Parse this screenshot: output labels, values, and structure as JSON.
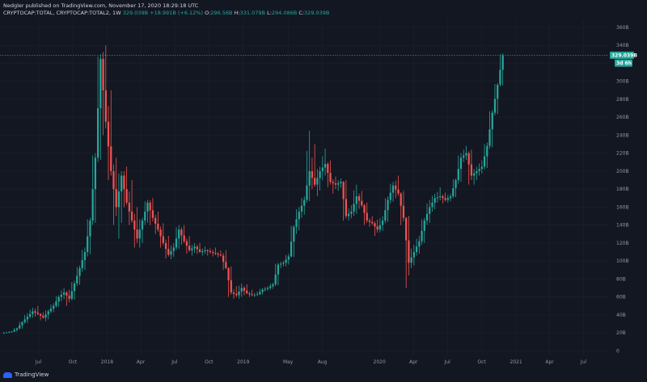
{
  "header": {
    "published": "Nedgler published on TradingView.com, November 17, 2020 18:29:18 UTC",
    "symbol": "CRYPTOCAP:TOTAL, CRYPTOCAP:TOTAL2, 1W",
    "last": "329.039B",
    "change": "+18.991B (+6.12%)",
    "o_label": "O:",
    "o_value": "296.56B",
    "h_label": "H:",
    "h_value": "331.079B",
    "l_label": "L:",
    "l_value": "294.086B",
    "c_label": "C:",
    "c_value": "329.039B"
  },
  "footer": {
    "brand": "TradingView"
  },
  "colors": {
    "background": "#131722",
    "up": "#26a69a",
    "down": "#ef5350",
    "grid": "#1e222d",
    "axis_text": "#9598a1"
  },
  "chart_data": {
    "type": "candlestick",
    "price_unit": "B",
    "y_axis_labels": [
      "0",
      "20B",
      "40B",
      "60B",
      "80B",
      "100B",
      "120B",
      "140B",
      "160B",
      "180B",
      "200B",
      "220B",
      "240B",
      "260B",
      "280B",
      "300B",
      "320B",
      "340B",
      "360B"
    ],
    "y_axis_values": [
      0,
      20,
      40,
      60,
      80,
      100,
      120,
      140,
      160,
      180,
      200,
      220,
      240,
      260,
      280,
      300,
      320,
      340,
      360
    ],
    "ylim": [
      -5,
      368
    ],
    "x_axis_labels": [
      "Jul",
      "Oct",
      "2018",
      "Apr",
      "Jul",
      "Oct",
      "2019",
      "May",
      "Aug",
      "2020",
      "Apr",
      "Jul",
      "Oct",
      "2021",
      "Apr",
      "Jul"
    ],
    "x_axis_dates": [
      "2017-07-01",
      "2017-10-01",
      "2018-01-01",
      "2018-04-01",
      "2018-07-01",
      "2018-10-01",
      "2019-01-01",
      "2019-05-01",
      "2019-08-01",
      "2020-01-01",
      "2020-04-01",
      "2020-07-01",
      "2020-10-01",
      "2021-01-01",
      "2021-04-01",
      "2021-07-01"
    ],
    "xlim": [
      "2017-03-20",
      "2021-09-05"
    ],
    "price_tags": [
      {
        "label": "329.039B",
        "value": 329.04
      },
      {
        "label": "3d 6h",
        "value": 320.2
      }
    ],
    "grid": true,
    "candles": [
      {
        "date": "2017-03-27",
        "o": 20,
        "h": 21,
        "l": 19,
        "c": 20.5
      },
      {
        "date": "2017-04-10",
        "o": 20.5,
        "h": 22,
        "l": 20,
        "c": 21.5
      },
      {
        "date": "2017-04-24",
        "o": 21.5,
        "h": 26,
        "l": 21,
        "c": 25
      },
      {
        "date": "2017-05-08",
        "o": 25,
        "h": 33,
        "l": 24,
        "c": 32
      },
      {
        "date": "2017-05-22",
        "o": 32,
        "h": 42,
        "l": 30,
        "c": 38
      },
      {
        "date": "2017-06-05",
        "o": 38,
        "h": 48,
        "l": 36,
        "c": 44
      },
      {
        "date": "2017-06-19",
        "o": 44,
        "h": 50,
        "l": 38,
        "c": 41
      },
      {
        "date": "2017-07-03",
        "o": 41,
        "h": 43,
        "l": 34,
        "c": 37
      },
      {
        "date": "2017-07-17",
        "o": 37,
        "h": 46,
        "l": 33,
        "c": 44
      },
      {
        "date": "2017-07-31",
        "o": 44,
        "h": 53,
        "l": 42,
        "c": 50
      },
      {
        "date": "2017-08-14",
        "o": 50,
        "h": 62,
        "l": 48,
        "c": 60
      },
      {
        "date": "2017-08-28",
        "o": 60,
        "h": 70,
        "l": 55,
        "c": 65
      },
      {
        "date": "2017-09-11",
        "o": 65,
        "h": 68,
        "l": 50,
        "c": 58
      },
      {
        "date": "2017-09-25",
        "o": 58,
        "h": 78,
        "l": 56,
        "c": 75
      },
      {
        "date": "2017-10-09",
        "o": 75,
        "h": 95,
        "l": 72,
        "c": 92
      },
      {
        "date": "2017-10-23",
        "o": 92,
        "h": 115,
        "l": 88,
        "c": 110
      },
      {
        "date": "2017-11-06",
        "o": 110,
        "h": 148,
        "l": 105,
        "c": 145
      },
      {
        "date": "2017-11-20",
        "o": 145,
        "h": 220,
        "l": 140,
        "c": 215
      },
      {
        "date": "2017-12-04",
        "o": 215,
        "h": 330,
        "l": 210,
        "c": 325
      },
      {
        "date": "2017-12-18",
        "o": 325,
        "h": 340,
        "l": 240,
        "c": 255
      },
      {
        "date": "2018-01-01",
        "o": 255,
        "h": 290,
        "l": 190,
        "c": 200
      },
      {
        "date": "2018-01-15",
        "o": 200,
        "h": 215,
        "l": 140,
        "c": 160
      },
      {
        "date": "2018-01-29",
        "o": 160,
        "h": 200,
        "l": 125,
        "c": 195
      },
      {
        "date": "2018-02-12",
        "o": 195,
        "h": 205,
        "l": 160,
        "c": 165
      },
      {
        "date": "2018-02-26",
        "o": 165,
        "h": 190,
        "l": 140,
        "c": 145
      },
      {
        "date": "2018-03-12",
        "o": 145,
        "h": 160,
        "l": 115,
        "c": 125
      },
      {
        "date": "2018-03-26",
        "o": 125,
        "h": 148,
        "l": 115,
        "c": 145
      },
      {
        "date": "2018-04-09",
        "o": 145,
        "h": 168,
        "l": 140,
        "c": 165
      },
      {
        "date": "2018-04-23",
        "o": 165,
        "h": 170,
        "l": 140,
        "c": 148
      },
      {
        "date": "2018-05-07",
        "o": 148,
        "h": 155,
        "l": 130,
        "c": 135
      },
      {
        "date": "2018-05-21",
        "o": 135,
        "h": 142,
        "l": 115,
        "c": 120
      },
      {
        "date": "2018-06-04",
        "o": 120,
        "h": 128,
        "l": 103,
        "c": 107
      },
      {
        "date": "2018-06-18",
        "o": 107,
        "h": 120,
        "l": 102,
        "c": 115
      },
      {
        "date": "2018-07-02",
        "o": 115,
        "h": 140,
        "l": 112,
        "c": 135
      },
      {
        "date": "2018-07-16",
        "o": 135,
        "h": 140,
        "l": 118,
        "c": 122
      },
      {
        "date": "2018-07-30",
        "o": 122,
        "h": 128,
        "l": 108,
        "c": 112
      },
      {
        "date": "2018-08-13",
        "o": 112,
        "h": 120,
        "l": 106,
        "c": 116
      },
      {
        "date": "2018-08-27",
        "o": 116,
        "h": 120,
        "l": 108,
        "c": 110
      },
      {
        "date": "2018-09-10",
        "o": 110,
        "h": 116,
        "l": 106,
        "c": 112
      },
      {
        "date": "2018-09-24",
        "o": 112,
        "h": 114,
        "l": 106,
        "c": 110
      },
      {
        "date": "2018-10-08",
        "o": 110,
        "h": 115,
        "l": 105,
        "c": 108
      },
      {
        "date": "2018-10-22",
        "o": 108,
        "h": 112,
        "l": 104,
        "c": 106
      },
      {
        "date": "2018-11-05",
        "o": 106,
        "h": 112,
        "l": 90,
        "c": 92
      },
      {
        "date": "2018-11-19",
        "o": 92,
        "h": 94,
        "l": 60,
        "c": 65
      },
      {
        "date": "2018-12-03",
        "o": 65,
        "h": 72,
        "l": 58,
        "c": 62
      },
      {
        "date": "2018-12-17",
        "o": 62,
        "h": 75,
        "l": 58,
        "c": 70
      },
      {
        "date": "2018-12-31",
        "o": 70,
        "h": 74,
        "l": 62,
        "c": 64
      },
      {
        "date": "2019-01-14",
        "o": 64,
        "h": 68,
        "l": 60,
        "c": 62
      },
      {
        "date": "2019-01-28",
        "o": 62,
        "h": 66,
        "l": 60,
        "c": 63
      },
      {
        "date": "2019-02-11",
        "o": 63,
        "h": 70,
        "l": 62,
        "c": 68
      },
      {
        "date": "2019-02-25",
        "o": 68,
        "h": 72,
        "l": 66,
        "c": 70
      },
      {
        "date": "2019-03-11",
        "o": 70,
        "h": 76,
        "l": 68,
        "c": 74
      },
      {
        "date": "2019-03-25",
        "o": 74,
        "h": 98,
        "l": 72,
        "c": 96
      },
      {
        "date": "2019-04-08",
        "o": 96,
        "h": 100,
        "l": 92,
        "c": 98
      },
      {
        "date": "2019-04-22",
        "o": 98,
        "h": 108,
        "l": 94,
        "c": 105
      },
      {
        "date": "2019-05-06",
        "o": 105,
        "h": 140,
        "l": 104,
        "c": 138
      },
      {
        "date": "2019-05-20",
        "o": 138,
        "h": 160,
        "l": 130,
        "c": 155
      },
      {
        "date": "2019-06-03",
        "o": 155,
        "h": 172,
        "l": 148,
        "c": 168
      },
      {
        "date": "2019-06-17",
        "o": 168,
        "h": 245,
        "l": 165,
        "c": 200
      },
      {
        "date": "2019-07-01",
        "o": 200,
        "h": 230,
        "l": 180,
        "c": 185
      },
      {
        "date": "2019-07-15",
        "o": 185,
        "h": 205,
        "l": 172,
        "c": 200
      },
      {
        "date": "2019-07-29",
        "o": 200,
        "h": 225,
        "l": 190,
        "c": 208
      },
      {
        "date": "2019-08-12",
        "o": 208,
        "h": 212,
        "l": 182,
        "c": 188
      },
      {
        "date": "2019-08-26",
        "o": 188,
        "h": 194,
        "l": 175,
        "c": 185
      },
      {
        "date": "2019-09-09",
        "o": 185,
        "h": 192,
        "l": 178,
        "c": 188
      },
      {
        "date": "2019-09-23",
        "o": 188,
        "h": 190,
        "l": 145,
        "c": 150
      },
      {
        "date": "2019-10-07",
        "o": 150,
        "h": 162,
        "l": 145,
        "c": 155
      },
      {
        "date": "2019-10-21",
        "o": 155,
        "h": 185,
        "l": 150,
        "c": 172
      },
      {
        "date": "2019-11-04",
        "o": 172,
        "h": 178,
        "l": 158,
        "c": 162
      },
      {
        "date": "2019-11-18",
        "o": 162,
        "h": 165,
        "l": 140,
        "c": 145
      },
      {
        "date": "2019-12-02",
        "o": 145,
        "h": 150,
        "l": 138,
        "c": 142
      },
      {
        "date": "2019-12-16",
        "o": 142,
        "h": 146,
        "l": 128,
        "c": 135
      },
      {
        "date": "2019-12-30",
        "o": 135,
        "h": 150,
        "l": 132,
        "c": 145
      },
      {
        "date": "2020-01-13",
        "o": 145,
        "h": 172,
        "l": 142,
        "c": 168
      },
      {
        "date": "2020-01-27",
        "o": 168,
        "h": 188,
        "l": 164,
        "c": 184
      },
      {
        "date": "2020-02-10",
        "o": 184,
        "h": 195,
        "l": 170,
        "c": 175
      },
      {
        "date": "2020-02-24",
        "o": 175,
        "h": 178,
        "l": 140,
        "c": 148
      },
      {
        "date": "2020-03-09",
        "o": 148,
        "h": 150,
        "l": 70,
        "c": 98
      },
      {
        "date": "2020-03-23",
        "o": 98,
        "h": 118,
        "l": 92,
        "c": 110
      },
      {
        "date": "2020-04-06",
        "o": 110,
        "h": 128,
        "l": 106,
        "c": 122
      },
      {
        "date": "2020-04-20",
        "o": 122,
        "h": 148,
        "l": 118,
        "c": 145
      },
      {
        "date": "2020-05-04",
        "o": 145,
        "h": 168,
        "l": 140,
        "c": 160
      },
      {
        "date": "2020-05-18",
        "o": 160,
        "h": 175,
        "l": 155,
        "c": 170
      },
      {
        "date": "2020-06-01",
        "o": 170,
        "h": 182,
        "l": 165,
        "c": 172
      },
      {
        "date": "2020-06-15",
        "o": 172,
        "h": 176,
        "l": 164,
        "c": 168
      },
      {
        "date": "2020-06-29",
        "o": 168,
        "h": 175,
        "l": 165,
        "c": 172
      },
      {
        "date": "2020-07-13",
        "o": 172,
        "h": 192,
        "l": 170,
        "c": 190
      },
      {
        "date": "2020-07-27",
        "o": 190,
        "h": 220,
        "l": 186,
        "c": 215
      },
      {
        "date": "2020-08-10",
        "o": 215,
        "h": 228,
        "l": 210,
        "c": 220
      },
      {
        "date": "2020-08-24",
        "o": 220,
        "h": 224,
        "l": 185,
        "c": 195
      },
      {
        "date": "2020-09-07",
        "o": 195,
        "h": 205,
        "l": 185,
        "c": 200
      },
      {
        "date": "2020-09-21",
        "o": 200,
        "h": 212,
        "l": 195,
        "c": 205
      },
      {
        "date": "2020-10-05",
        "o": 205,
        "h": 232,
        "l": 202,
        "c": 228
      },
      {
        "date": "2020-10-19",
        "o": 228,
        "h": 268,
        "l": 225,
        "c": 265
      },
      {
        "date": "2020-11-02",
        "o": 265,
        "h": 298,
        "l": 262,
        "c": 296
      },
      {
        "date": "2020-11-16",
        "o": 296.56,
        "h": 331.08,
        "l": 294.09,
        "c": 329.04
      }
    ]
  }
}
